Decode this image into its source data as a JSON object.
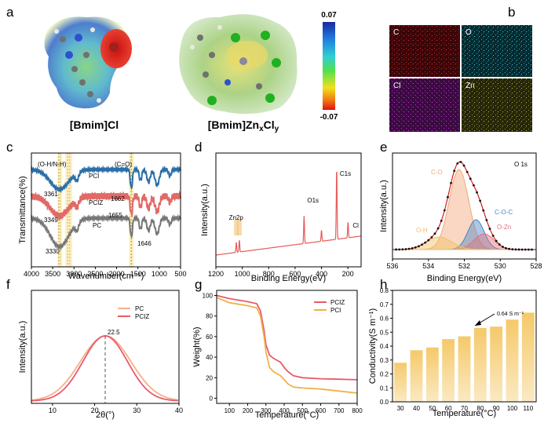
{
  "panels": {
    "a": {
      "letter": "a",
      "left_caption": "[Bmim]Cl",
      "right_caption_base": "[Bmim]Zn",
      "right_caption_x": "x",
      "right_caption_mid": "Cl",
      "right_caption_y": "y",
      "colorbar_top": "0.07",
      "colorbar_bottom": "-0.07"
    },
    "b": {
      "letter": "b",
      "maps": [
        {
          "label": "C",
          "color": "#e8323c"
        },
        {
          "label": "O",
          "color": "#35c6d6"
        },
        {
          "label": "Cl",
          "color": "#c23fd0"
        },
        {
          "label": "Zn",
          "color": "#a9a733"
        }
      ]
    }
  },
  "chart_data": [
    {
      "id": "c",
      "letter": "c",
      "type": "line",
      "xlabel": "Wavenumber(cm⁻¹)",
      "ylabel": "Transmittance(%)",
      "xlim": [
        4000,
        500
      ],
      "xticks": [
        4000,
        3500,
        3000,
        2500,
        2000,
        1500,
        1000,
        500
      ],
      "series": [
        {
          "name": "PCI",
          "color": "#2a6ea8"
        },
        {
          "name": "PCIZ",
          "color": "#e06a68"
        },
        {
          "name": "PC",
          "color": "#777777"
        }
      ],
      "annotations": [
        "(O-H/N-H)",
        "(C=O)",
        "3361",
        "3349",
        "3330",
        "1662",
        "1655",
        "1646"
      ]
    },
    {
      "id": "d",
      "letter": "d",
      "type": "line",
      "xlabel": "Binding Energy(eV)",
      "ylabel": "Intensity(a.u.)",
      "xlim": [
        1200,
        100
      ],
      "xticks": [
        1200,
        1000,
        800,
        600,
        400,
        200
      ],
      "series": [
        {
          "color": "#e85b5b"
        }
      ],
      "peaks": [
        {
          "label": "C1s",
          "x": 285
        },
        {
          "label": "O1s",
          "x": 532
        },
        {
          "label": "Cl",
          "x": 199
        },
        {
          "label": "Zn2p",
          "x": 1022
        },
        {
          "label": "",
          "x": 1045
        },
        {
          "label": "",
          "x": 400
        }
      ]
    },
    {
      "id": "e",
      "letter": "e",
      "type": "area",
      "title": "O 1s",
      "xlabel": "Binding Energy(eV)",
      "ylabel": "Intensity(a.u.)",
      "xlim": [
        536,
        528
      ],
      "xticks": [
        536,
        534,
        532,
        530,
        528
      ],
      "components": [
        {
          "name": "C-O",
          "center": 532.3,
          "color": "#f2a77a"
        },
        {
          "name": "C-O-C",
          "center": 531.4,
          "color": "#4a86c5"
        },
        {
          "name": "O-Zn",
          "center": 530.9,
          "color": "#e0707a"
        },
        {
          "name": "O-H",
          "center": 533.4,
          "color": "#f0c060"
        }
      ]
    },
    {
      "id": "f",
      "letter": "f",
      "type": "line",
      "xlabel": "2θ(°)",
      "ylabel": "Intensity(a.u.)",
      "xlim": [
        5,
        40
      ],
      "xticks": [
        10,
        20,
        30,
        40
      ],
      "peak_label": "22.5",
      "series": [
        {
          "name": "PC",
          "color": "#f5b08a",
          "center": 22.6,
          "width": 6.0
        },
        {
          "name": "PCIZ",
          "color": "#e85a6a",
          "center": 22.5,
          "width": 5.3
        }
      ]
    },
    {
      "id": "g",
      "letter": "g",
      "type": "line",
      "xlabel": "Temperature(°C)",
      "ylabel": "Weight(%)",
      "xlim": [
        30,
        800
      ],
      "ylim": [
        -5,
        105
      ],
      "xticks": [
        100,
        200,
        300,
        400,
        500,
        600,
        700,
        800
      ],
      "yticks": [
        0,
        20,
        40,
        60,
        80,
        100
      ],
      "series": [
        {
          "name": "PCIZ",
          "color": "#e85a6a",
          "x": [
            30,
            100,
            200,
            250,
            270,
            290,
            300,
            320,
            340,
            360,
            380,
            400,
            420,
            450,
            500,
            600,
            700,
            800
          ],
          "y": [
            100,
            97,
            94,
            92,
            85,
            66,
            52,
            42,
            39,
            37,
            35,
            30,
            26,
            22,
            20,
            19,
            18.5,
            18
          ]
        },
        {
          "name": "PCI",
          "color": "#f0b04a",
          "x": [
            30,
            100,
            200,
            250,
            270,
            290,
            300,
            320,
            340,
            360,
            380,
            400,
            420,
            450,
            500,
            600,
            700,
            800
          ],
          "y": [
            98,
            93,
            90,
            88,
            80,
            60,
            45,
            30,
            26,
            24,
            22,
            18,
            14,
            11,
            10,
            9,
            7,
            5
          ]
        }
      ]
    },
    {
      "id": "h",
      "letter": "h",
      "type": "bar",
      "xlabel": "Temperature(°C)",
      "ylabel": "Conductivity(S m⁻¹)",
      "ylim": [
        0,
        0.8
      ],
      "yticks": [
        0,
        0.1,
        0.2,
        0.3,
        0.4,
        0.5,
        0.6,
        0.7,
        0.8
      ],
      "categories": [
        "30",
        "40",
        "50",
        "60",
        "70",
        "80",
        "90",
        "100",
        "110"
      ],
      "values": [
        0.28,
        0.37,
        0.39,
        0.45,
        0.47,
        0.53,
        0.54,
        0.59,
        0.64
      ],
      "annotation": "0.64 S m⁻¹"
    }
  ]
}
